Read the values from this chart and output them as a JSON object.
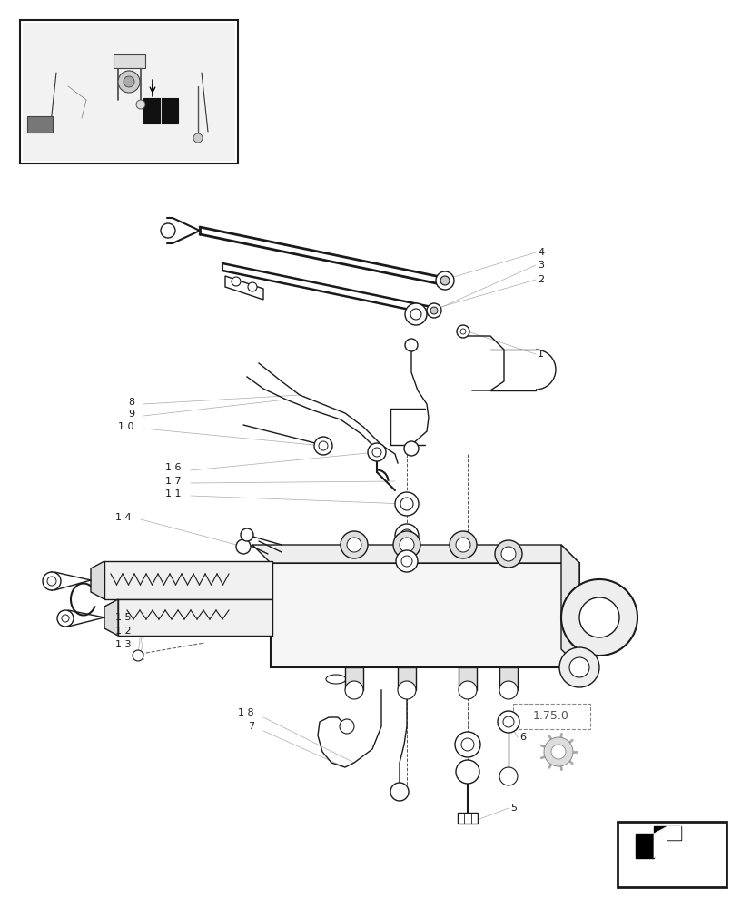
{
  "bg_color": "#ffffff",
  "line_color": "#1a1a1a",
  "gray_color": "#888888",
  "light_line": "#aaaaaa",
  "ref_box_text": "1.75.0",
  "figsize": [
    8.28,
    10.0
  ],
  "dpi": 100
}
